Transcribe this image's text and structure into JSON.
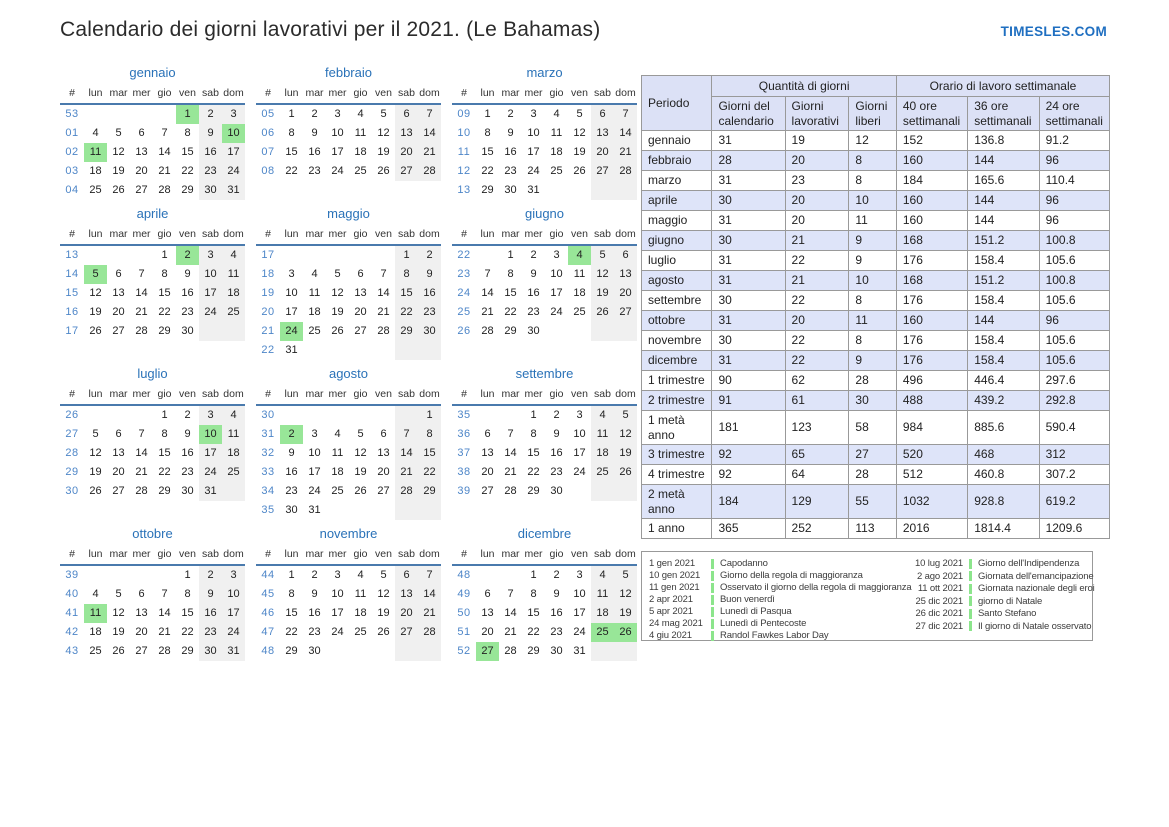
{
  "header": {
    "title": "Calendario dei giorni lavorativi per il 2021. (Le Bahamas)",
    "brand": "TIMESLES.COM"
  },
  "colors": {
    "accent_blue": "#2a72b8",
    "week_number_blue": "#4e86c8",
    "header_rule_blue": "#4a7aad",
    "holiday_green": "#98e698",
    "weekend_gray": "#f0f0f0",
    "table_header_bg": "#dce1f6",
    "table_stripe_bg": "#dee4f9",
    "brand_blue": "#1f6fc1"
  },
  "calendar": {
    "day_headers": [
      "#",
      "lun",
      "mar",
      "mer",
      "gio",
      "ven",
      "sab",
      "dom"
    ],
    "months": [
      {
        "name": "gennaio",
        "week_nums": [
          "53",
          "01",
          "02",
          "03",
          "04"
        ],
        "start": 4,
        "days": 31,
        "holidays": [
          1,
          10,
          11
        ]
      },
      {
        "name": "febbraio",
        "week_nums": [
          "05",
          "06",
          "07",
          "08"
        ],
        "start": 0,
        "days": 28,
        "holidays": []
      },
      {
        "name": "marzo",
        "week_nums": [
          "09",
          "10",
          "11",
          "12",
          "13"
        ],
        "start": 0,
        "days": 31,
        "holidays": []
      },
      {
        "name": "aprile",
        "week_nums": [
          "13",
          "14",
          "15",
          "16",
          "17"
        ],
        "start": 3,
        "days": 30,
        "holidays": [
          2,
          5
        ]
      },
      {
        "name": "maggio",
        "week_nums": [
          "17",
          "18",
          "19",
          "20",
          "21",
          "22"
        ],
        "start": 5,
        "days": 31,
        "holidays": [
          24
        ]
      },
      {
        "name": "giugno",
        "week_nums": [
          "22",
          "23",
          "24",
          "25",
          "26"
        ],
        "start": 1,
        "days": 30,
        "holidays": [
          4
        ]
      },
      {
        "name": "luglio",
        "week_nums": [
          "26",
          "27",
          "28",
          "29",
          "30"
        ],
        "start": 3,
        "days": 31,
        "holidays": [
          10
        ]
      },
      {
        "name": "agosto",
        "week_nums": [
          "30",
          "31",
          "32",
          "33",
          "34",
          "35"
        ],
        "start": 6,
        "days": 31,
        "holidays": [
          2
        ]
      },
      {
        "name": "settembre",
        "week_nums": [
          "35",
          "36",
          "37",
          "38",
          "39"
        ],
        "start": 2,
        "days": 30,
        "holidays": []
      },
      {
        "name": "ottobre",
        "week_nums": [
          "39",
          "40",
          "41",
          "42",
          "43"
        ],
        "start": 4,
        "days": 31,
        "holidays": [
          11
        ]
      },
      {
        "name": "novembre",
        "week_nums": [
          "44",
          "45",
          "46",
          "47",
          "48"
        ],
        "start": 0,
        "days": 30,
        "holidays": []
      },
      {
        "name": "dicembre",
        "week_nums": [
          "48",
          "49",
          "50",
          "51",
          "52"
        ],
        "start": 2,
        "days": 31,
        "holidays": [
          25,
          26,
          27
        ]
      }
    ]
  },
  "stats_table": {
    "period_header": "Periodo",
    "group_headers": [
      "Quantità di giorni",
      "Orario di lavoro settimanale"
    ],
    "sub_headers": [
      "Giorni del calendario",
      "Giorni lavorativi",
      "Giorni liberi",
      "40 ore settimanali",
      "36 ore settimanali",
      "24 ore settimanali"
    ],
    "rows": [
      {
        "label": "gennaio",
        "values": [
          "31",
          "19",
          "12",
          "152",
          "136.8",
          "91.2"
        ]
      },
      {
        "label": "febbraio",
        "values": [
          "28",
          "20",
          "8",
          "160",
          "144",
          "96"
        ]
      },
      {
        "label": "marzo",
        "values": [
          "31",
          "23",
          "8",
          "184",
          "165.6",
          "110.4"
        ]
      },
      {
        "label": "aprile",
        "values": [
          "30",
          "20",
          "10",
          "160",
          "144",
          "96"
        ]
      },
      {
        "label": "maggio",
        "values": [
          "31",
          "20",
          "11",
          "160",
          "144",
          "96"
        ]
      },
      {
        "label": "giugno",
        "values": [
          "30",
          "21",
          "9",
          "168",
          "151.2",
          "100.8"
        ]
      },
      {
        "label": "luglio",
        "values": [
          "31",
          "22",
          "9",
          "176",
          "158.4",
          "105.6"
        ]
      },
      {
        "label": "agosto",
        "values": [
          "31",
          "21",
          "10",
          "168",
          "151.2",
          "100.8"
        ]
      },
      {
        "label": "settembre",
        "values": [
          "30",
          "22",
          "8",
          "176",
          "158.4",
          "105.6"
        ]
      },
      {
        "label": "ottobre",
        "values": [
          "31",
          "20",
          "11",
          "160",
          "144",
          "96"
        ]
      },
      {
        "label": "novembre",
        "values": [
          "30",
          "22",
          "8",
          "176",
          "158.4",
          "105.6"
        ]
      },
      {
        "label": "dicembre",
        "values": [
          "31",
          "22",
          "9",
          "176",
          "158.4",
          "105.6"
        ]
      },
      {
        "label": "1 trimestre",
        "values": [
          "90",
          "62",
          "28",
          "496",
          "446.4",
          "297.6"
        ]
      },
      {
        "label": "2 trimestre",
        "values": [
          "91",
          "61",
          "30",
          "488",
          "439.2",
          "292.8"
        ]
      },
      {
        "label": "1 metà anno",
        "values": [
          "181",
          "123",
          "58",
          "984",
          "885.6",
          "590.4"
        ]
      },
      {
        "label": "3 trimestre",
        "values": [
          "92",
          "65",
          "27",
          "520",
          "468",
          "312"
        ]
      },
      {
        "label": "4 trimestre",
        "values": [
          "92",
          "64",
          "28",
          "512",
          "460.8",
          "307.2"
        ]
      },
      {
        "label": "2 metà anno",
        "values": [
          "184",
          "129",
          "55",
          "1032",
          "928.8",
          "619.2"
        ]
      },
      {
        "label": "1 anno",
        "values": [
          "365",
          "252",
          "113",
          "2016",
          "1814.4",
          "1209.6"
        ]
      }
    ]
  },
  "legend": {
    "columns": [
      [
        {
          "date": "1 gen 2021",
          "name": "Capodanno"
        },
        {
          "date": "10 gen 2021",
          "name": "Giorno della regola di maggioranza"
        },
        {
          "date": "11 gen 2021",
          "name": "Osservato il giorno della regola di maggioranza"
        },
        {
          "date": "2 apr 2021",
          "name": "Buon venerdì"
        },
        {
          "date": "5 apr 2021",
          "name": "Lunedì di Pasqua"
        },
        {
          "date": "24 mag 2021",
          "name": "Lunedì di Pentecoste"
        },
        {
          "date": "4 giu 2021",
          "name": "Randol Fawkes Labor Day"
        }
      ],
      [
        {
          "date": "10 lug 2021",
          "name": "Giorno dell'Indipendenza"
        },
        {
          "date": "2 ago 2021",
          "name": "Giornata dell'emancipazione"
        },
        {
          "date": "11 ott 2021",
          "name": "Giornata nazionale degli eroi"
        },
        {
          "date": "25 dic 2021",
          "name": "giorno di Natale"
        },
        {
          "date": "26 dic 2021",
          "name": "Santo Stefano"
        },
        {
          "date": "27 dic 2021",
          "name": "Il giorno di Natale osservato"
        }
      ]
    ]
  }
}
